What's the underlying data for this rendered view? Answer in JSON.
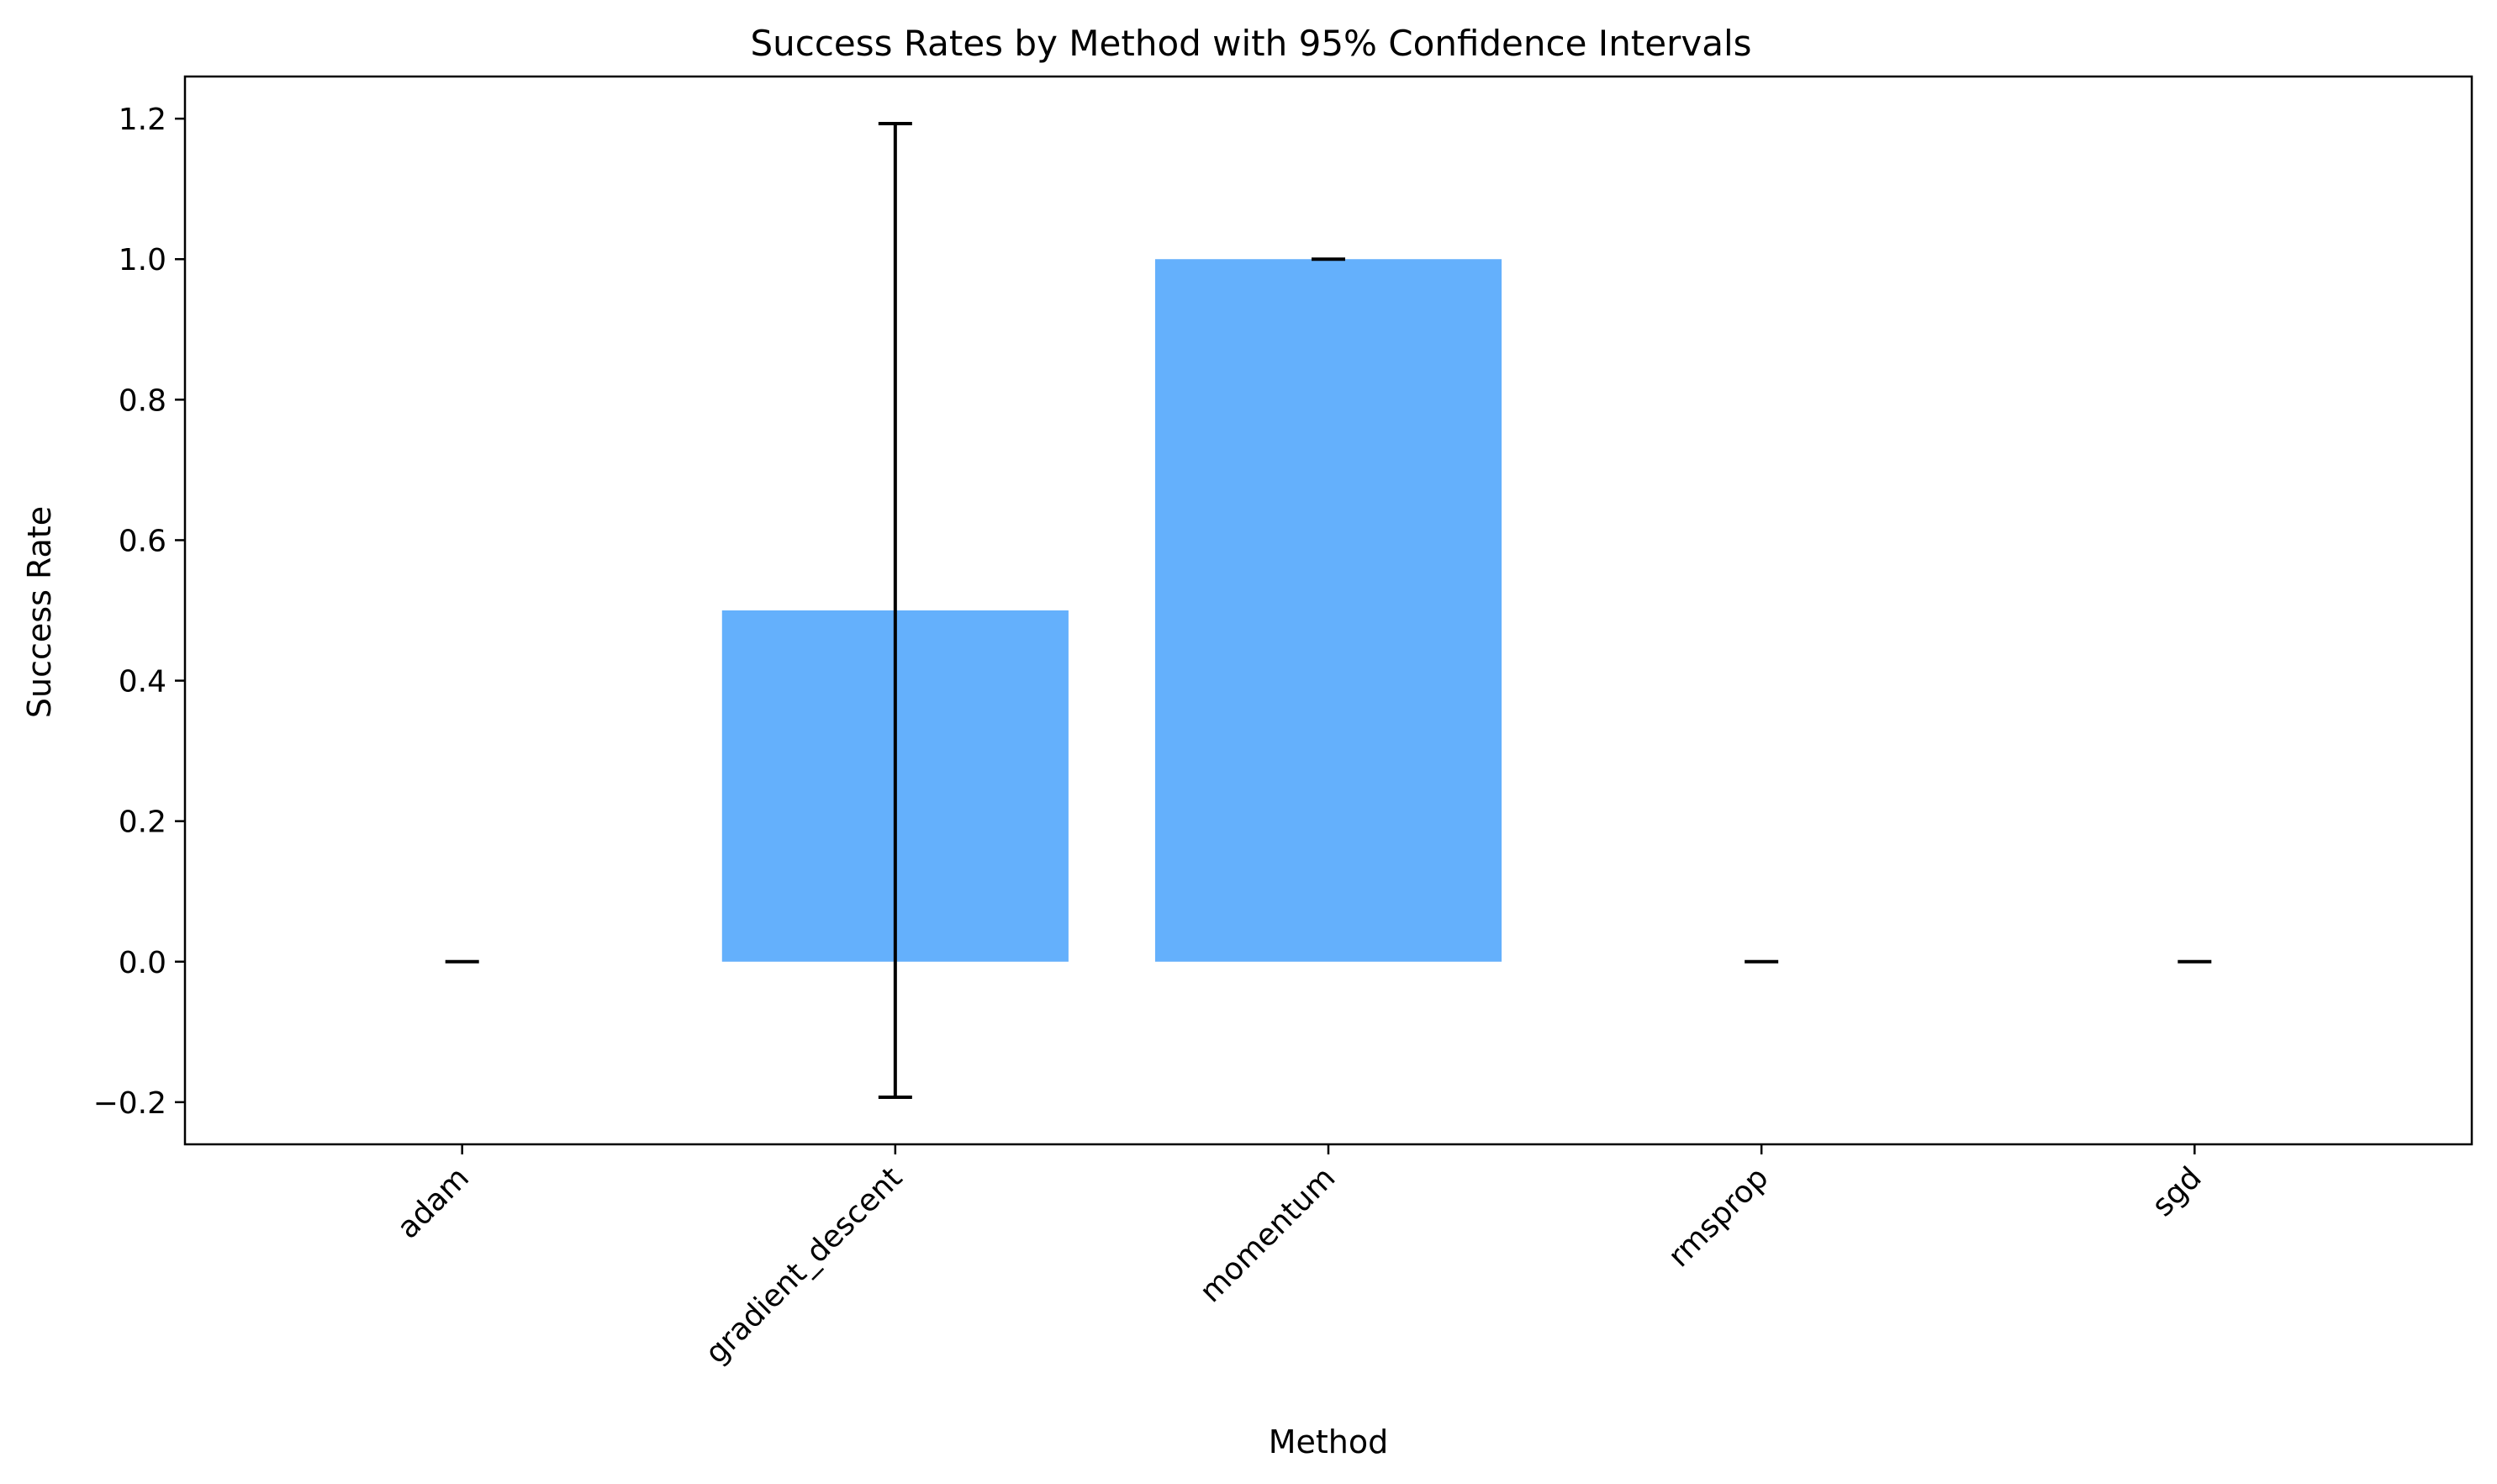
{
  "chart_data": {
    "type": "bar",
    "title": "Success Rates by Method with 95% Confidence Intervals",
    "xlabel": "Method",
    "ylabel": "Success Rate",
    "categories": [
      "adam",
      "gradient_descent",
      "momentum",
      "rmsprop",
      "sgd"
    ],
    "values": [
      0.0,
      0.5,
      1.0,
      0.0,
      0.0
    ],
    "ci_lower": [
      0.0,
      -0.193,
      1.0,
      0.0,
      0.0
    ],
    "ci_upper": [
      0.0,
      1.193,
      1.0,
      0.0,
      0.0
    ],
    "ylim": [
      -0.26,
      1.26
    ],
    "yticks": [
      -0.2,
      0.0,
      0.2,
      0.4,
      0.6,
      0.8,
      1.0,
      1.2
    ],
    "ytick_labels": [
      "−0.2",
      "0.0",
      "0.2",
      "0.4",
      "0.6",
      "0.8",
      "1.0",
      "1.2"
    ],
    "bar_color": "#64b0fc",
    "errorbar_color": "#000000",
    "grid": false,
    "legend": "none"
  }
}
